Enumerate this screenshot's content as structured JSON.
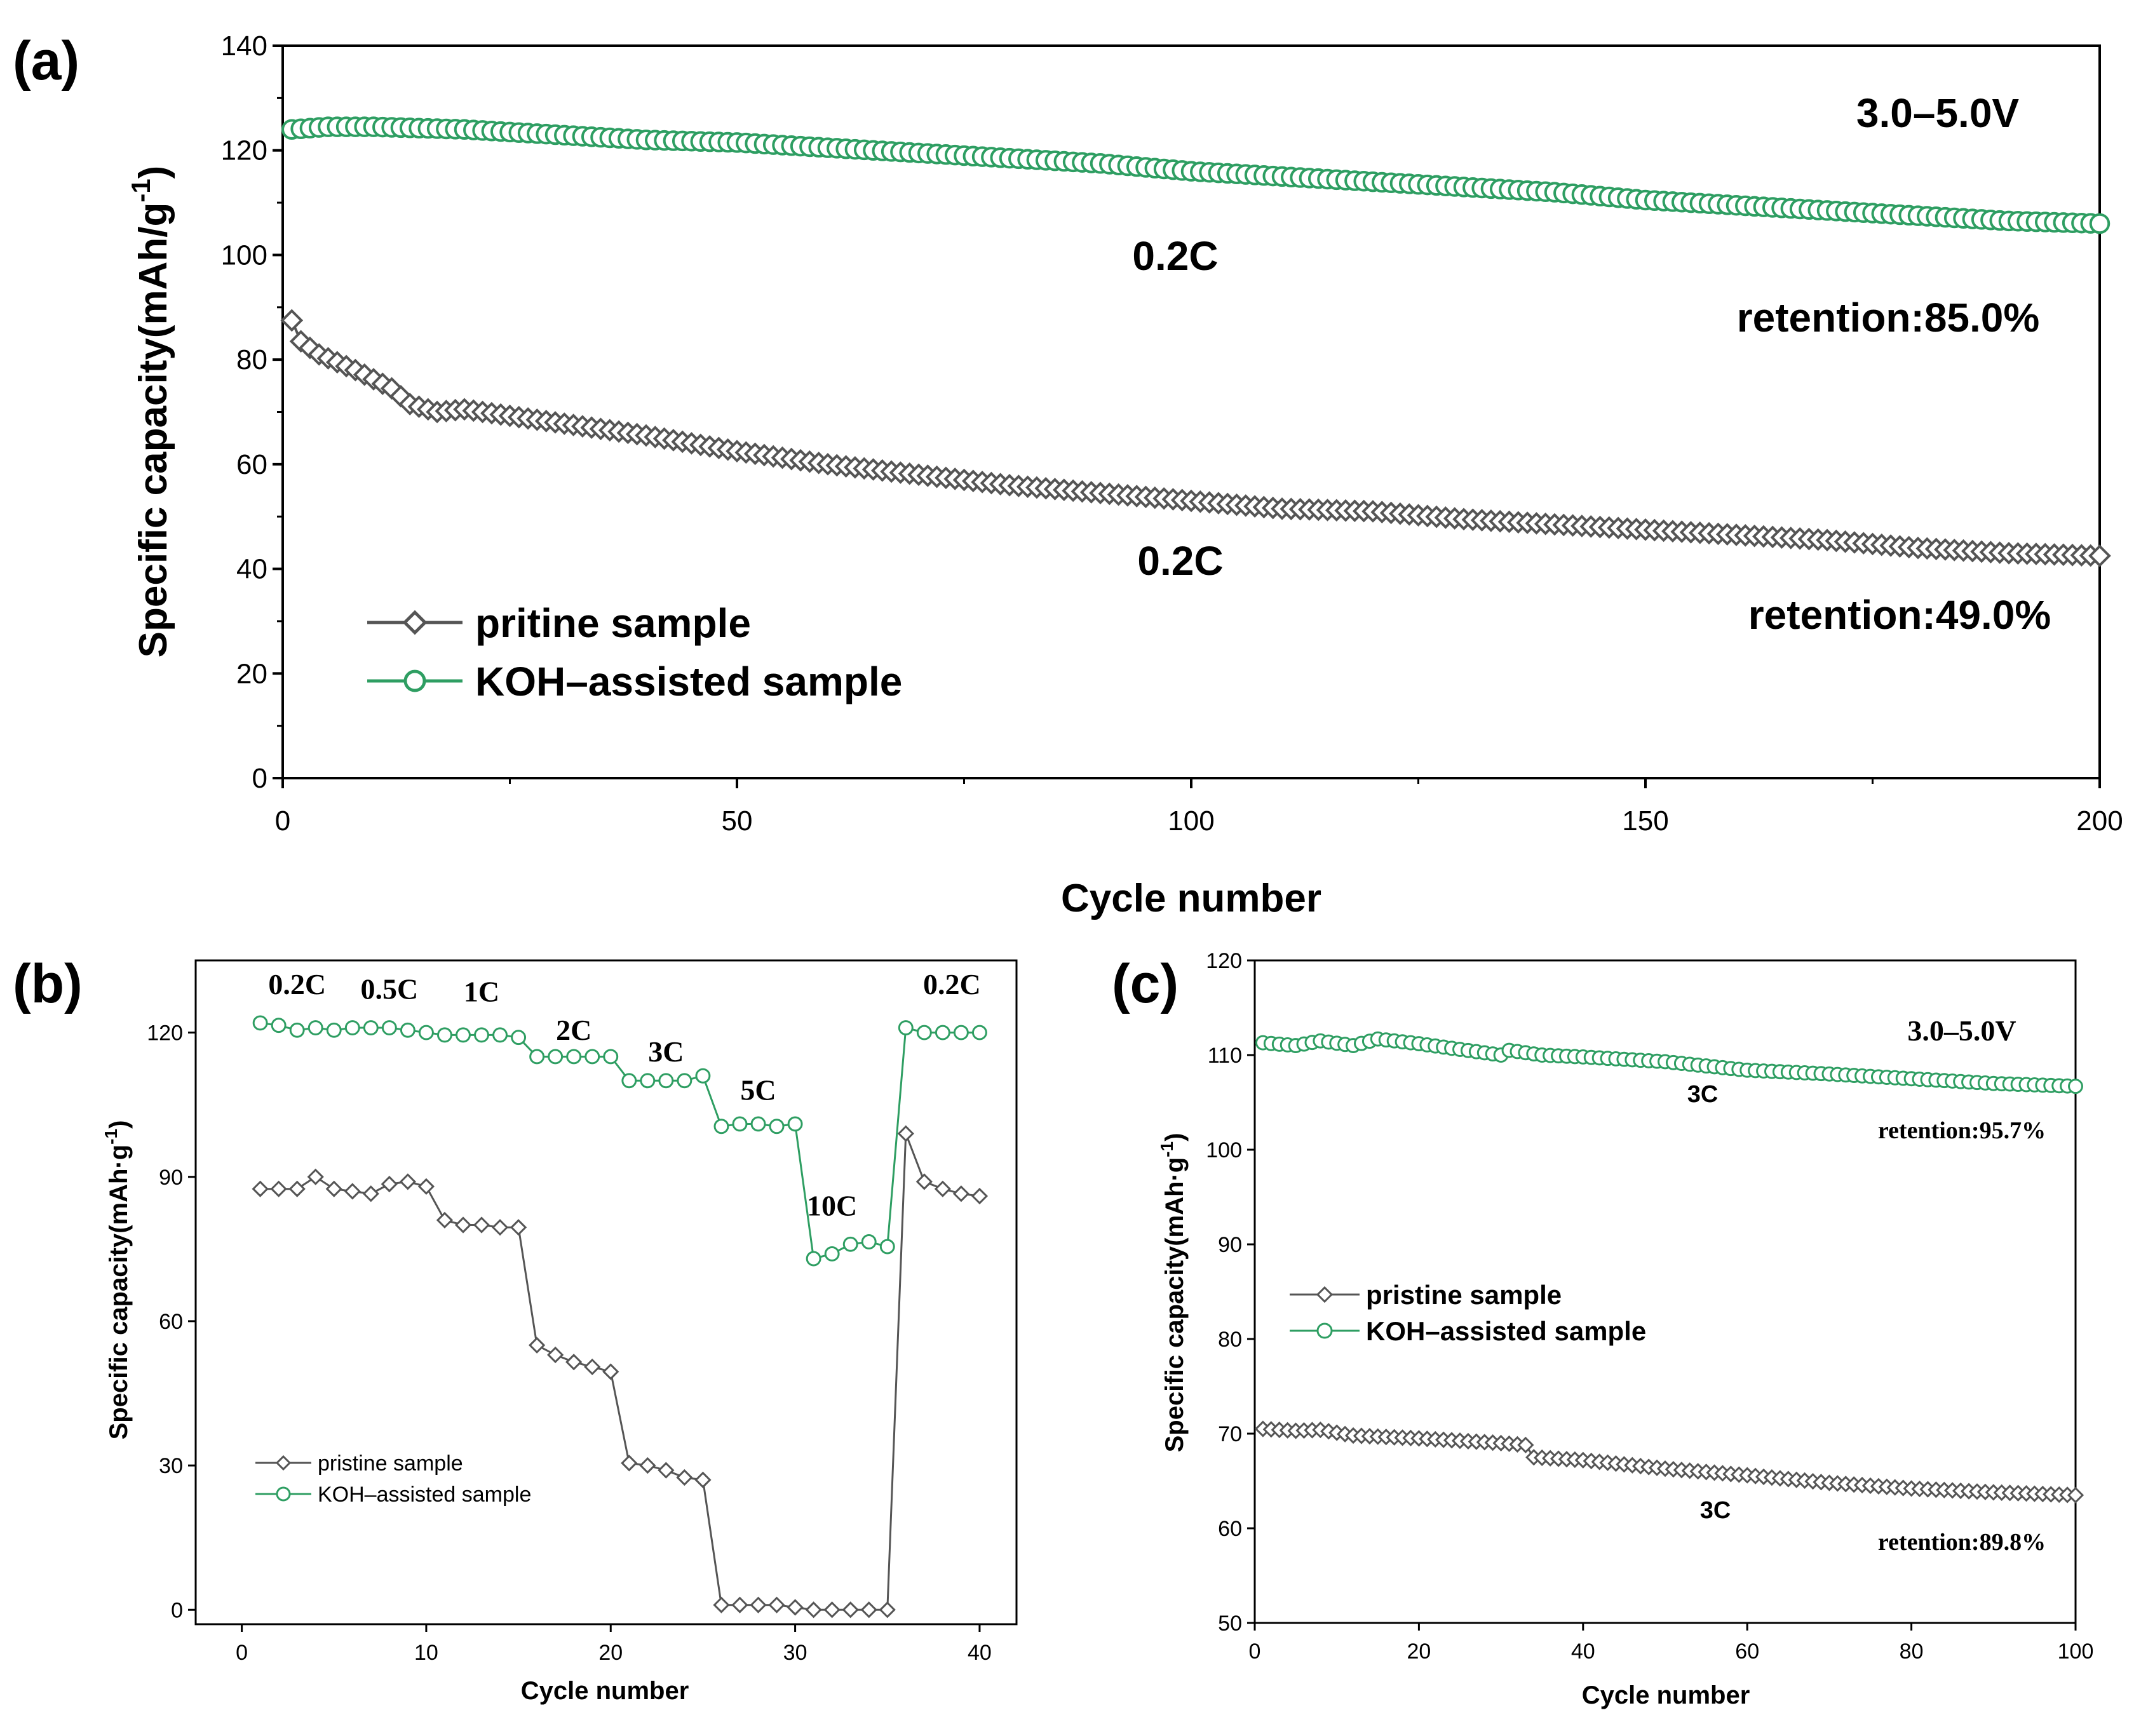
{
  "chart_data": [
    {
      "id": "a",
      "type": "line",
      "panel_label": "(a)",
      "xlabel": "Cycle number",
      "ylabel": "Specific capacity(mAh/g",
      "ylabel_sup": "-1",
      "ylabel_close": ")",
      "xlim": [
        0,
        200
      ],
      "ylim": [
        0,
        140
      ],
      "xticks": [
        0,
        50,
        100,
        150,
        200
      ],
      "yticks": [
        0,
        20,
        40,
        60,
        80,
        100,
        120,
        140
      ],
      "annotations": {
        "voltage": "3.0–5.0V",
        "rate_top": "0.2C",
        "retention_top": "retention:85.0%",
        "rate_bottom": "0.2C",
        "retention_bottom": "retention:49.0%"
      },
      "legend": {
        "position": "bottom-left"
      },
      "series": [
        {
          "name": "pritine sample",
          "marker": "diamond",
          "color": "#555555",
          "points": [
            [
              1,
              87.5
            ],
            [
              2,
              83.5
            ],
            [
              4,
              81
            ],
            [
              8,
              78
            ],
            [
              12,
              74.5
            ],
            [
              14,
              71.5
            ],
            [
              17,
              70
            ],
            [
              20,
              70.5
            ],
            [
              30,
              68
            ],
            [
              40,
              65.5
            ],
            [
              50,
              62.5
            ],
            [
              60,
              60
            ],
            [
              70,
              58
            ],
            [
              80,
              56
            ],
            [
              90,
              54.5
            ],
            [
              100,
              53
            ],
            [
              110,
              51.5
            ],
            [
              120,
              51
            ],
            [
              130,
              49.5
            ],
            [
              140,
              48.5
            ],
            [
              150,
              47.5
            ],
            [
              160,
              46.5
            ],
            [
              170,
              45.5
            ],
            [
              180,
              44
            ],
            [
              190,
              43
            ],
            [
              200,
              42.5
            ]
          ]
        },
        {
          "name": "KOH–assisted sample",
          "marker": "circle",
          "color": "#2e9e62",
          "points": [
            [
              1,
              124
            ],
            [
              5,
              124.5
            ],
            [
              10,
              124.5
            ],
            [
              20,
              124
            ],
            [
              30,
              123
            ],
            [
              40,
              122
            ],
            [
              50,
              121.5
            ],
            [
              60,
              120.5
            ],
            [
              70,
              119.5
            ],
            [
              80,
              118.5
            ],
            [
              90,
              117.5
            ],
            [
              100,
              116
            ],
            [
              110,
              115
            ],
            [
              120,
              114
            ],
            [
              130,
              113
            ],
            [
              140,
              112
            ],
            [
              150,
              110.5
            ],
            [
              160,
              109.5
            ],
            [
              170,
              108.5
            ],
            [
              180,
              107.5
            ],
            [
              190,
              106.5
            ],
            [
              200,
              106
            ]
          ]
        }
      ]
    },
    {
      "id": "b",
      "type": "line",
      "panel_label": "(b)",
      "xlabel": "Cycle number",
      "ylabel": "Specific capacity(mAh·g",
      "ylabel_sup": "-1",
      "ylabel_close": ")",
      "xlim": [
        -2.5,
        42
      ],
      "ylim": [
        -3,
        135
      ],
      "xticks": [
        0,
        10,
        20,
        30,
        40
      ],
      "yticks": [
        0,
        30,
        60,
        90,
        120
      ],
      "rate_labels": [
        {
          "text": "0.2C",
          "x": 3,
          "y": 128
        },
        {
          "text": "0.5C",
          "x": 8,
          "y": 127
        },
        {
          "text": "1C",
          "x": 13,
          "y": 126.5
        },
        {
          "text": "2C",
          "x": 18,
          "y": 118.5
        },
        {
          "text": "3C",
          "x": 23,
          "y": 114
        },
        {
          "text": "5C",
          "x": 28,
          "y": 106
        },
        {
          "text": "10C",
          "x": 32,
          "y": 82
        },
        {
          "text": "0.2C",
          "x": 38.5,
          "y": 128
        }
      ],
      "legend": {
        "position": "bottom-left"
      },
      "series": [
        {
          "name": "pristine sample",
          "marker": "diamond",
          "color": "#555555",
          "x": [
            1,
            2,
            3,
            4,
            5,
            6,
            7,
            8,
            9,
            10,
            11,
            12,
            13,
            14,
            15,
            16,
            17,
            18,
            19,
            20,
            21,
            22,
            23,
            24,
            25,
            26,
            27,
            28,
            29,
            30,
            31,
            32,
            33,
            34,
            35,
            36,
            37,
            38,
            39,
            40
          ],
          "values": [
            87.5,
            87.5,
            87.5,
            90,
            87.5,
            87,
            86.5,
            88.5,
            89,
            88,
            81,
            80,
            80,
            79.5,
            79.5,
            55,
            53,
            51.5,
            50.5,
            49.5,
            30.5,
            30,
            29,
            27.5,
            27,
            1,
            1,
            1,
            1,
            0.5,
            0,
            0,
            0,
            0,
            0,
            99,
            89,
            87.5,
            86.5,
            86
          ]
        },
        {
          "name": "KOH–assisted sample",
          "marker": "circle",
          "color": "#2e9e62",
          "x": [
            1,
            2,
            3,
            4,
            5,
            6,
            7,
            8,
            9,
            10,
            11,
            12,
            13,
            14,
            15,
            16,
            17,
            18,
            19,
            20,
            21,
            22,
            23,
            24,
            25,
            26,
            27,
            28,
            29,
            30,
            31,
            32,
            33,
            34,
            35,
            36,
            37,
            38,
            39,
            40
          ],
          "values": [
            122,
            121.5,
            120.5,
            121,
            120.5,
            121,
            121,
            121,
            120.5,
            120,
            119.5,
            119.5,
            119.5,
            119.5,
            119,
            115,
            115,
            115,
            115,
            115,
            110,
            110,
            110,
            110,
            111,
            100.5,
            101,
            101,
            100.5,
            101,
            73,
            74,
            76,
            76.5,
            75.5,
            121,
            120,
            120,
            120,
            120
          ]
        }
      ]
    },
    {
      "id": "c",
      "type": "line",
      "panel_label": "(c)",
      "xlabel": "Cycle number",
      "ylabel": "Specific capacity(mAh·g",
      "ylabel_sup": "-1",
      "ylabel_close": ")",
      "xlim": [
        0,
        100
      ],
      "ylim": [
        50,
        120
      ],
      "xticks": [
        0,
        20,
        40,
        60,
        80,
        100
      ],
      "yticks": [
        50,
        60,
        70,
        80,
        90,
        100,
        110,
        120
      ],
      "annotations": {
        "voltage": "3.0–5.0V",
        "rate_top": "3C",
        "retention_top": "retention:95.7%",
        "rate_bottom": "3C",
        "retention_bottom": "retention:89.8%"
      },
      "legend": {
        "position": "left"
      },
      "series": [
        {
          "name": "pristine sample",
          "marker": "diamond",
          "color": "#555555",
          "points": [
            [
              1,
              70.5
            ],
            [
              5,
              70.3
            ],
            [
              8,
              70.4
            ],
            [
              12,
              69.8
            ],
            [
              20,
              69.5
            ],
            [
              30,
              69
            ],
            [
              33,
              68.8
            ],
            [
              34,
              67.5
            ],
            [
              40,
              67.2
            ],
            [
              50,
              66.3
            ],
            [
              60,
              65.6
            ],
            [
              70,
              64.8
            ],
            [
              80,
              64.2
            ],
            [
              90,
              63.8
            ],
            [
              100,
              63.5
            ]
          ]
        },
        {
          "name": "KOH–assisted sample",
          "marker": "circle",
          "color": "#2e9e62",
          "points": [
            [
              1,
              111.3
            ],
            [
              5,
              111
            ],
            [
              8,
              111.5
            ],
            [
              12,
              111
            ],
            [
              15,
              111.7
            ],
            [
              20,
              111.2
            ],
            [
              25,
              110.6
            ],
            [
              30,
              110
            ],
            [
              31,
              110.5
            ],
            [
              35,
              110
            ],
            [
              40,
              109.8
            ],
            [
              50,
              109.3
            ],
            [
              60,
              108.4
            ],
            [
              70,
              108
            ],
            [
              80,
              107.5
            ],
            [
              90,
              107
            ],
            [
              100,
              106.7
            ]
          ]
        }
      ]
    }
  ]
}
